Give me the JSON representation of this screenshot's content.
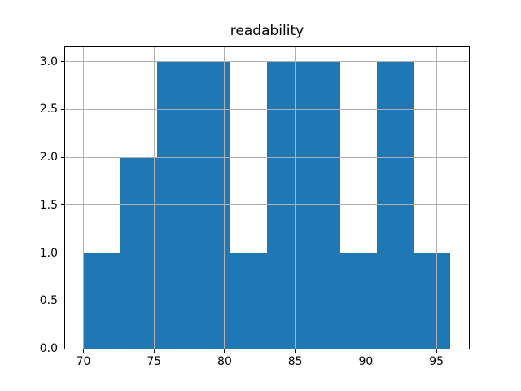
{
  "title": "readability",
  "colors": {
    "bar": "#1f77b4",
    "grid": "#b0b0b0",
    "spine": "#000000",
    "text": "#000000",
    "background": "#ffffff"
  },
  "chart_data": {
    "type": "bar",
    "subtype": "histogram",
    "title": "readability",
    "xlabel": "",
    "ylabel": "",
    "bin_edges": [
      70.0,
      72.6,
      75.2,
      77.8,
      80.4,
      83.0,
      85.6,
      88.2,
      90.8,
      93.4,
      96.0
    ],
    "counts": [
      1,
      2,
      3,
      3,
      1,
      3,
      3,
      1,
      3,
      1
    ],
    "xlim": [
      68.7,
      97.3
    ],
    "ylim": [
      0,
      3.15
    ],
    "xticks": [
      70,
      75,
      80,
      85,
      90,
      95
    ],
    "xtick_labels": [
      "70",
      "75",
      "80",
      "85",
      "90",
      "95"
    ],
    "yticks": [
      0.0,
      0.5,
      1.0,
      1.5,
      2.0,
      2.5,
      3.0
    ],
    "ytick_labels": [
      "0.0",
      "0.5",
      "1.0",
      "1.5",
      "2.0",
      "2.5",
      "3.0"
    ],
    "grid": true,
    "grid_above_bars": true,
    "legend": null
  }
}
